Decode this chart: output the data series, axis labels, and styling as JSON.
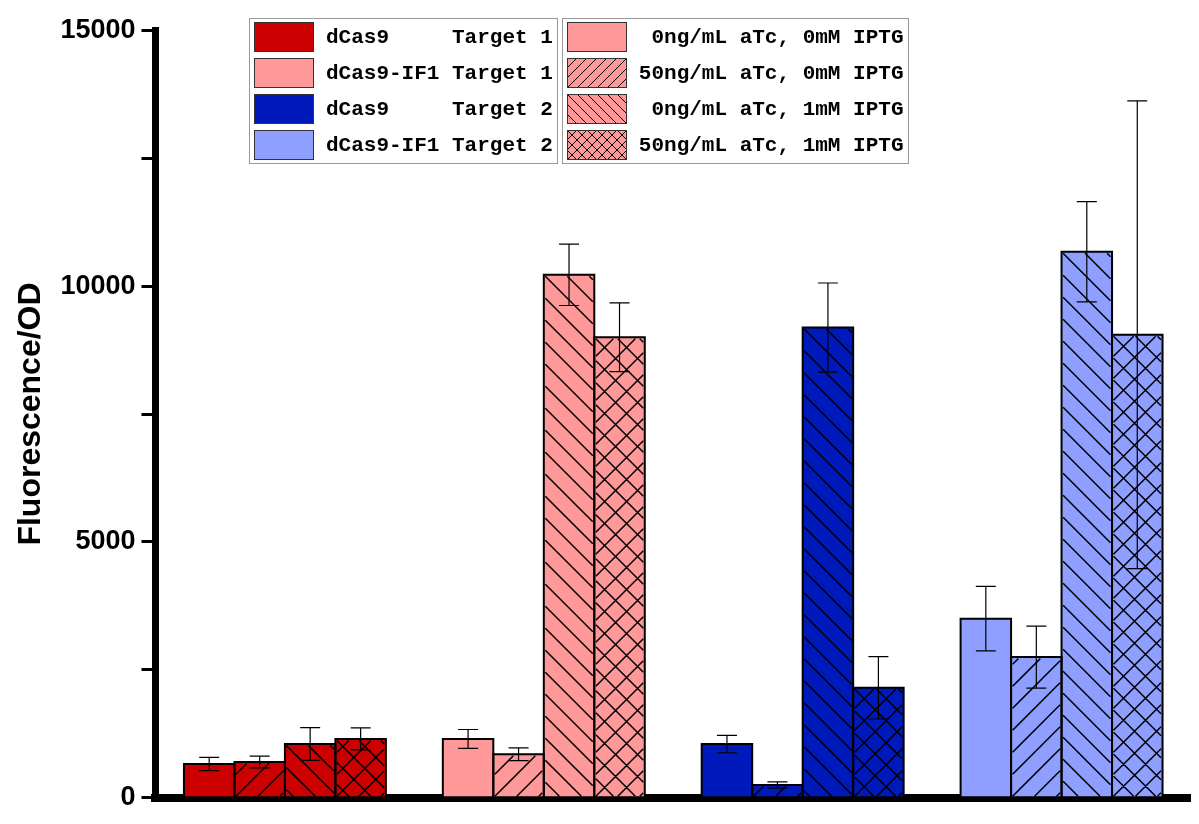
{
  "chart_data": {
    "type": "bar",
    "ylabel": "Fluorescence/OD",
    "categories": [
      null,
      null,
      null,
      null
    ],
    "annotations": [
      "dCas9     Target 1",
      "dCas9-IF1 Target 1",
      "dCas9     Target 2",
      "dCas9-IF1 Target 2"
    ],
    "series": [
      {
        "name": " 0ng/mL aTc, 0mM IPTG",
        "color": "#ff9999",
        "colors": [
          "#cc0000",
          "#ff9999",
          "#0019bb",
          "#8f9fff"
        ],
        "values": [
          660,
          1150,
          1050,
          3500
        ],
        "errors": [
          130,
          185,
          170,
          630
        ]
      },
      {
        "name": "50ng/mL aTc, 0mM IPTG",
        "color": "#ff9999",
        "colors": [
          "#cc0000",
          "#ff9999",
          "#0019bb",
          "#8f9fff"
        ],
        "values": [
          700,
          850,
          250,
          2750
        ],
        "errors": [
          115,
          125,
          60,
          605
        ]
      },
      {
        "name": " 0ng/mL aTc, 1mM IPTG",
        "color": "#ff9999",
        "colors": [
          "#cc0000",
          "#ff9999",
          "#0019bb",
          "#8f9fff"
        ],
        "values": [
          1050,
          10220,
          9190,
          10670
        ],
        "errors": [
          320,
          600,
          870,
          980
        ]
      },
      {
        "name": "50ng/mL aTc, 1mM IPTG",
        "color": "#ff9999",
        "colors": [
          "#cc0000",
          "#ff9999",
          "#0019bb",
          "#8f9fff"
        ],
        "values": [
          1150,
          9000,
          2150,
          9050
        ],
        "errors": [
          215,
          670,
          610,
          4570
        ]
      }
    ],
    "ylim": [
      0,
      15000
    ],
    "yticks": [
      0,
      {
        "value": 2500,
        "label": null
      },
      5000,
      {
        "value": 7500,
        "label": null
      },
      10000,
      {
        "value": 12500,
        "label": null
      },
      15000
    ],
    "tick_labels": "y",
    "grid": false,
    "legend": "top"
  }
}
